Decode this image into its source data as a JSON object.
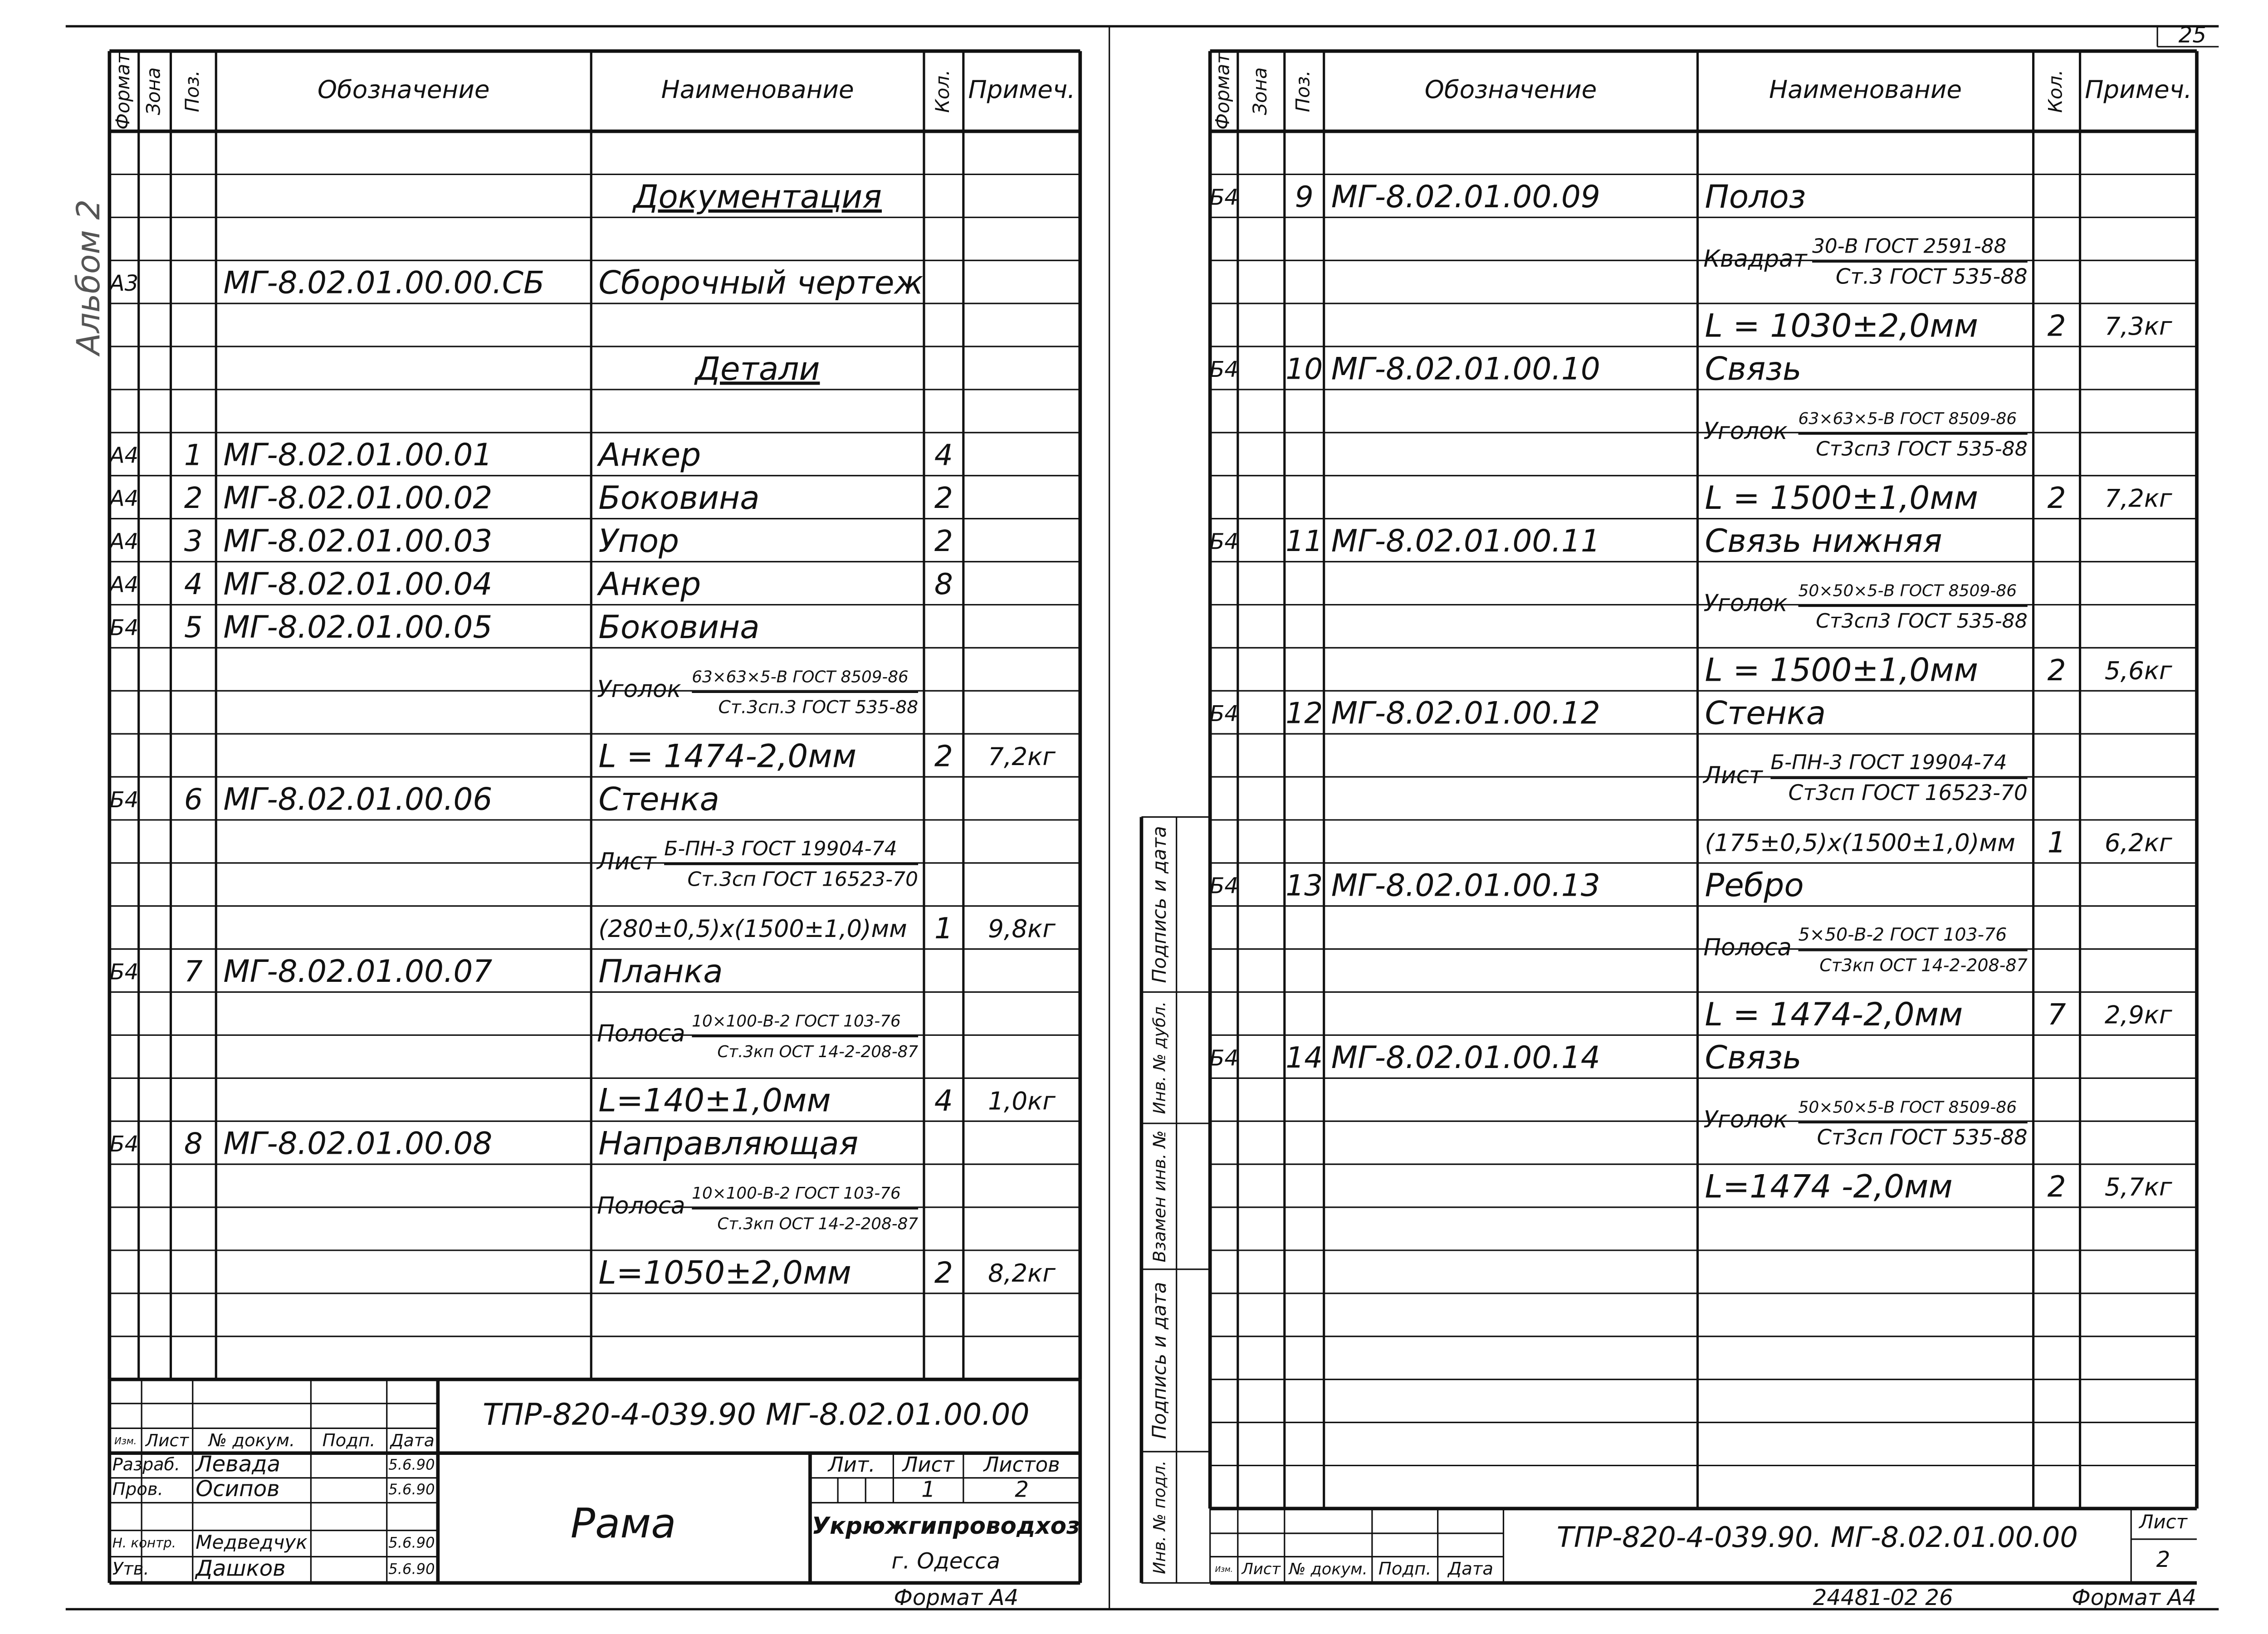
{
  "album_note": "Альбом 2",
  "page_number": "25",
  "sheets": [
    {
      "columns": [
        "Формат",
        "Зона",
        "Поз.",
        "Обозначение",
        "Наименование",
        "Кол.",
        "Примеч."
      ],
      "rows": [
        {
          "section": "Документация"
        },
        {
          "format": "А3",
          "designation": "МГ-8.02.01.00.00.СБ",
          "name": "Сборочный чертеж"
        },
        {
          "section": "Детали"
        },
        {
          "format": "А4",
          "pos": "1",
          "designation": "МГ-8.02.01.00.01",
          "name": "Анкер",
          "qty": "4"
        },
        {
          "format": "А4",
          "pos": "2",
          "designation": "МГ-8.02.01.00.02",
          "name": "Боковина",
          "qty": "2"
        },
        {
          "format": "А4",
          "pos": "3",
          "designation": "МГ-8.02.01.00.03",
          "name": "Упор",
          "qty": "2"
        },
        {
          "format": "А4",
          "pos": "4",
          "designation": "МГ-8.02.01.00.04",
          "name": "Анкер",
          "qty": "8"
        },
        {
          "format": "Б4",
          "pos": "5",
          "designation": "МГ-8.02.01.00.05",
          "name": "Боковина"
        },
        {
          "material": "Уголок",
          "spec": "63×63×5-В ГОСТ 8509-86",
          "grade": "Ст.3сп.3 ГОСТ 535-88"
        },
        {
          "name": "L = 1474-2,0мм",
          "qty": "2",
          "note": "7,2кг"
        },
        {
          "format": "Б4",
          "pos": "6",
          "designation": "МГ-8.02.01.00.06",
          "name": "Стенка"
        },
        {
          "material": "Лист",
          "spec": "Б-ПН-3 ГОСТ 19904-74",
          "grade": "Ст.3сп ГОСТ 16523-70"
        },
        {
          "name": "(280±0,5)х(1500±1,0)мм",
          "qty": "1",
          "note": "9,8кг"
        },
        {
          "format": "Б4",
          "pos": "7",
          "designation": "МГ-8.02.01.00.07",
          "name": "Планка"
        },
        {
          "material": "Полоса",
          "spec": "10×100-В-2 ГОСТ 103-76",
          "grade": "Ст.3кп ОСТ 14-2-208-87"
        },
        {
          "name": "L=140±1,0мм",
          "qty": "4",
          "note": "1,0кг"
        },
        {
          "format": "Б4",
          "pos": "8",
          "designation": "МГ-8.02.01.00.08",
          "name": "Направляющая"
        },
        {
          "material": "Полоса",
          "spec": "10×100-В-2 ГОСТ 103-76",
          "grade": "Ст.3кп ОСТ 14-2-208-87"
        },
        {
          "name": "L=1050±2,0мм",
          "qty": "2",
          "note": "8,2кг"
        }
      ],
      "title_block": {
        "designation": "ТПР-820-4-039.90  МГ-8.02.01.00.00",
        "labels": [
          "Изм.",
          "Лист",
          "№ докум.",
          "Подп.",
          "Дата"
        ],
        "roles": [
          {
            "role": "Разраб.",
            "name": "Левада",
            "date": "5.6.90"
          },
          {
            "role": "Пров.",
            "name": "Осипов",
            "date": "5.6.90"
          },
          {
            "role": "Н. контр.",
            "name": "Медведчук",
            "date": "5.6.90"
          },
          {
            "role": "Утв.",
            "name": "Дашков",
            "date": "5.6.90"
          }
        ],
        "product": "Рама",
        "stage_labels": [
          "Лит.",
          "Лист",
          "Листов"
        ],
        "sheet": "1",
        "sheets_total": "2",
        "organization": "Укрюжгипроводхоз",
        "city": "г. Одесса",
        "format": "Формат А4"
      }
    },
    {
      "columns": [
        "Формат",
        "Зона",
        "Поз.",
        "Обозначение",
        "Наименование",
        "Кол.",
        "Примеч."
      ],
      "rows": [
        {
          "format": "Б4",
          "pos": "9",
          "designation": "МГ-8.02.01.00.09",
          "name": "Полоз"
        },
        {
          "material": "Квадрат",
          "spec": "30-В ГОСТ 2591-88",
          "grade": "Ст.3 ГОСТ 535-88"
        },
        {
          "name": "L = 1030±2,0мм",
          "qty": "2",
          "note": "7,3кг"
        },
        {
          "format": "Б4",
          "pos": "10",
          "designation": "МГ-8.02.01.00.10",
          "name": "Связь"
        },
        {
          "material": "Уголок",
          "spec": "63×63×5-В ГОСТ 8509-86",
          "grade": "Ст3сп3 ГОСТ 535-88"
        },
        {
          "name": "L = 1500±1,0мм",
          "qty": "2",
          "note": "7,2кг"
        },
        {
          "format": "Б4",
          "pos": "11",
          "designation": "МГ-8.02.01.00.11",
          "name": "Связь нижняя"
        },
        {
          "material": "Уголок",
          "spec": "50×50×5-В ГОСТ 8509-86",
          "grade": "Ст3сп3 ГОСТ 535-88"
        },
        {
          "name": "L = 1500±1,0мм",
          "qty": "2",
          "note": "5,6кг"
        },
        {
          "format": "Б4",
          "pos": "12",
          "designation": "МГ-8.02.01.00.12",
          "name": "Стенка"
        },
        {
          "material": "Лист",
          "spec": "Б-ПН-3 ГОСТ 19904-74",
          "grade": "Ст3сп ГОСТ 16523-70"
        },
        {
          "name": "(175±0,5)х(1500±1,0)мм",
          "qty": "1",
          "note": "6,2кг"
        },
        {
          "format": "Б4",
          "pos": "13",
          "designation": "МГ-8.02.01.00.13",
          "name": "Ребро"
        },
        {
          "material": "Полоса",
          "spec": "5×50-В-2 ГОСТ 103-76",
          "grade": "Ст3кп ОСТ 14-2-208-87"
        },
        {
          "name": "L = 1474-2,0мм",
          "qty": "7",
          "note": "2,9кг"
        },
        {
          "format": "Б4",
          "pos": "14",
          "designation": "МГ-8.02.01.00.14",
          "name": "Связь"
        },
        {
          "material": "Уголок",
          "spec": "50×50×5-В ГОСТ 8509-86",
          "grade": "Ст3сп ГОСТ 535-88"
        },
        {
          "name": "L=1474 -2,0мм",
          "qty": "2",
          "note": "5,7кг"
        }
      ],
      "stamps": [
        "Подпись и дата",
        "Инв. № дубл.",
        "Взамен инв. №",
        "Подпись и дата",
        "Инв. № подл."
      ],
      "title_block": {
        "designation": "ТПР-820-4-039.90.  МГ-8.02.01.00.00",
        "labels": [
          "Изм.",
          "Лист",
          "№ докум.",
          "Подп.",
          "Дата"
        ],
        "sheet_label": "Лист",
        "sheet": "2",
        "code": "24481-02  26",
        "format": "Формат А4"
      }
    }
  ]
}
